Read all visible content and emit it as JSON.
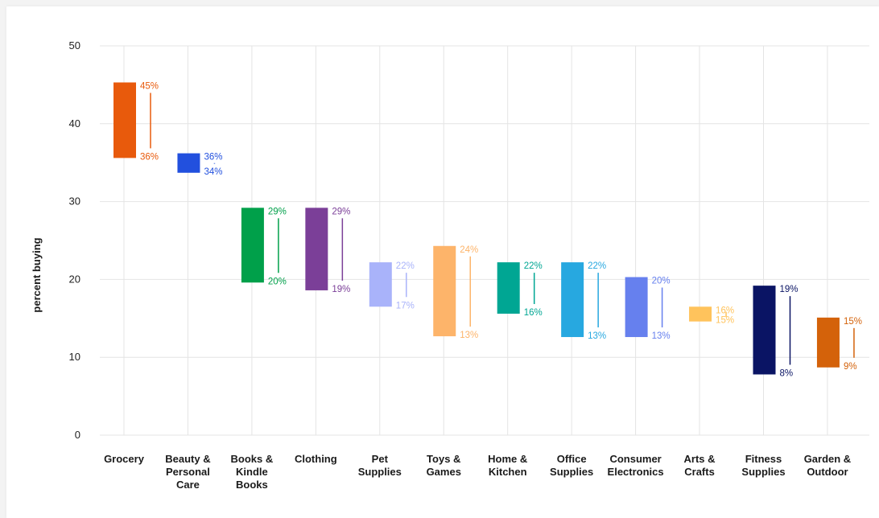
{
  "chart_data": {
    "type": "bar",
    "title": "",
    "xlabel": "",
    "ylabel": "percent buying",
    "ylim": [
      0,
      50
    ],
    "yticks": [
      0,
      10,
      20,
      30,
      40,
      50
    ],
    "grid": true,
    "legend": "none",
    "categories": [
      {
        "label": "Grocery",
        "low": 35.6,
        "high": 45.3,
        "low_label": "36%",
        "high_label": "45%",
        "color": "#E85A0C"
      },
      {
        "label": "Beauty & Personal Care",
        "low": 33.7,
        "high": 36.2,
        "low_label": "34%",
        "high_label": "36%",
        "color": "#2250DE"
      },
      {
        "label": "Books & Kindle Books",
        "low": 19.6,
        "high": 29.2,
        "low_label": "20%",
        "high_label": "29%",
        "color": "#00A04A"
      },
      {
        "label": "Clothing",
        "low": 18.6,
        "high": 29.2,
        "low_label": "19%",
        "high_label": "29%",
        "color": "#7B3F98"
      },
      {
        "label": "Pet Supplies",
        "low": 16.5,
        "high": 22.2,
        "low_label": "17%",
        "high_label": "22%",
        "color": "#A9B3FA"
      },
      {
        "label": "Toys & Games",
        "low": 12.7,
        "high": 24.3,
        "low_label": "13%",
        "high_label": "24%",
        "color": "#FDB46A"
      },
      {
        "label": "Home & Kitchen",
        "low": 15.6,
        "high": 22.2,
        "low_label": "16%",
        "high_label": "22%",
        "color": "#00A693"
      },
      {
        "label": "Office Supplies",
        "low": 12.6,
        "high": 22.2,
        "low_label": "13%",
        "high_label": "22%",
        "color": "#27A8E0"
      },
      {
        "label": "Consumer Electronics",
        "low": 12.6,
        "high": 20.3,
        "low_label": "13%",
        "high_label": "20%",
        "color": "#6680EE"
      },
      {
        "label": "Arts & Crafts",
        "low": 14.6,
        "high": 16.5,
        "low_label": "15%",
        "high_label": "16%",
        "color": "#FFC35C"
      },
      {
        "label": "Fitness Supplies",
        "low": 7.8,
        "high": 19.2,
        "low_label": "8%",
        "high_label": "19%",
        "color": "#0A1464"
      },
      {
        "label": "Garden & Outdoor",
        "low": 8.7,
        "high": 15.1,
        "low_label": "9%",
        "high_label": "15%",
        "color": "#D4620A"
      }
    ]
  },
  "colors": {
    "grid": "#e4e4e4",
    "card_background": "#ffffff",
    "page_background": "#f3f3f3"
  }
}
